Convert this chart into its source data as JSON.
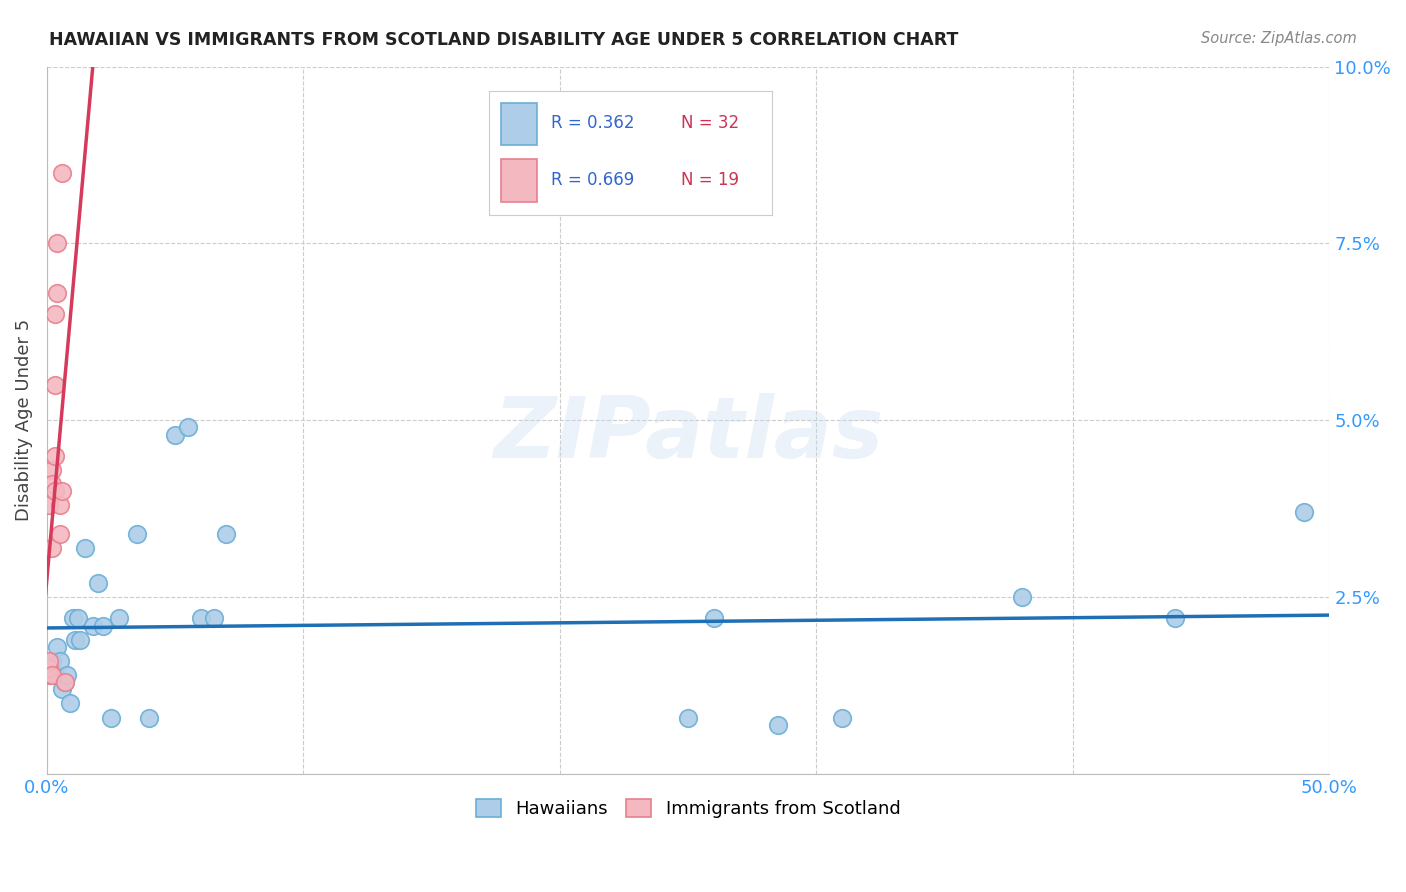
{
  "title": "HAWAIIAN VS IMMIGRANTS FROM SCOTLAND DISABILITY AGE UNDER 5 CORRELATION CHART",
  "source": "Source: ZipAtlas.com",
  "ylabel": "Disability Age Under 5",
  "xlim": [
    0.0,
    0.5
  ],
  "ylim": [
    0.0,
    0.1
  ],
  "xticks": [
    0.0,
    0.1,
    0.2,
    0.3,
    0.4,
    0.5
  ],
  "yticks": [
    0.0,
    0.025,
    0.05,
    0.075,
    0.1
  ],
  "ytick_labels": [
    "",
    "2.5%",
    "5.0%",
    "7.5%",
    "10.0%"
  ],
  "xtick_labels": [
    "0.0%",
    "",
    "",
    "",
    "",
    "50.0%"
  ],
  "hawaiian_x": [
    0.002,
    0.003,
    0.004,
    0.005,
    0.006,
    0.007,
    0.008,
    0.009,
    0.01,
    0.011,
    0.012,
    0.013,
    0.015,
    0.018,
    0.02,
    0.022,
    0.025,
    0.028,
    0.035,
    0.04,
    0.05,
    0.055,
    0.06,
    0.065,
    0.07,
    0.25,
    0.26,
    0.38,
    0.44,
    0.49,
    0.285,
    0.31
  ],
  "hawaiian_y": [
    0.016,
    0.014,
    0.018,
    0.016,
    0.012,
    0.013,
    0.014,
    0.01,
    0.022,
    0.019,
    0.022,
    0.019,
    0.032,
    0.021,
    0.027,
    0.021,
    0.008,
    0.022,
    0.034,
    0.008,
    0.048,
    0.049,
    0.022,
    0.022,
    0.034,
    0.008,
    0.022,
    0.025,
    0.022,
    0.037,
    0.007,
    0.008
  ],
  "scotland_x": [
    0.001,
    0.001,
    0.001,
    0.001,
    0.002,
    0.002,
    0.002,
    0.002,
    0.003,
    0.003,
    0.003,
    0.003,
    0.004,
    0.004,
    0.005,
    0.005,
    0.006,
    0.006,
    0.007
  ],
  "scotland_y": [
    0.014,
    0.015,
    0.016,
    0.038,
    0.043,
    0.041,
    0.032,
    0.014,
    0.065,
    0.055,
    0.045,
    0.04,
    0.075,
    0.068,
    0.038,
    0.034,
    0.085,
    0.04,
    0.013
  ],
  "hawaiian_color": "#aecde8",
  "hawaiian_edge": "#6baed6",
  "scotland_color": "#f4b8c1",
  "scotland_edge": "#e8808e",
  "trendline_blue": "#1f6fb5",
  "trendline_pink": "#d63a5a",
  "R_hawaiian": 0.362,
  "N_hawaiian": 32,
  "R_scotland": 0.669,
  "N_scotland": 19,
  "watermark": "ZIPatlas",
  "grid_color": "#dddddd"
}
